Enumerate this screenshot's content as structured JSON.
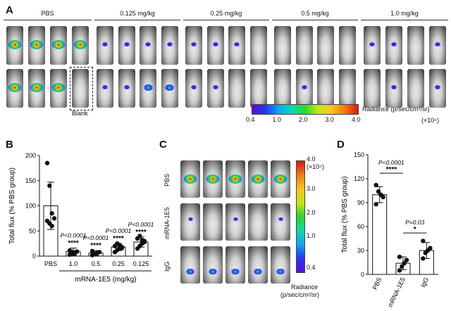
{
  "panel_a": {
    "letter": "A",
    "groups": [
      "PBS",
      "0.125 mg/kg",
      "0.25 mg/kg",
      "0.5 mg/kg",
      "1.0 mg/kg"
    ],
    "blank_label": "Blank",
    "colorbar": {
      "ticks": [
        "0.4",
        "1.0",
        "2.0",
        "3.0",
        "4.0"
      ],
      "label": "Radiance (p/sec/cm²/sr)",
      "unit": "(×10⁴)"
    }
  },
  "panel_c": {
    "letter": "C",
    "rows": [
      "PBS",
      "mRNA-1E5",
      "IgG"
    ],
    "colorbar": {
      "top": "4.0",
      "top_unit": "(×10⁴)",
      "ticks": [
        "3.0",
        "2.0",
        "1.0",
        "0.4"
      ],
      "label_line1": "Radiance",
      "label_line2": "(p/sec/cm²/sr)"
    }
  },
  "chart_data": [
    {
      "panel": "B",
      "type": "bar",
      "categories": [
        "PBS",
        "1.0",
        "0.5",
        "0.25",
        "0.125"
      ],
      "values": [
        100,
        9,
        6,
        18,
        28
      ],
      "errors": [
        47,
        7,
        5,
        7,
        10
      ],
      "points": [
        [
          185,
          140,
          85,
          75,
          70,
          65,
          60
        ],
        [
          3,
          5,
          7,
          9,
          11,
          8,
          5
        ],
        [
          2,
          4,
          6,
          8,
          10,
          5
        ],
        [
          8,
          12,
          15,
          18,
          20,
          25,
          22,
          16
        ],
        [
          15,
          20,
          25,
          30,
          35,
          40,
          32,
          28
        ]
      ],
      "ylabel": "Total flux (% PBS group)",
      "xlabel": "mRNA-1E5 (mg/kg)",
      "ylim": [
        0,
        200
      ],
      "yticks": [
        0,
        50,
        100,
        150,
        200
      ],
      "annotations": [
        {
          "category": "1.0",
          "p": "P<0.0001",
          "stars": "****"
        },
        {
          "category": "0.5",
          "p": "P<0.0001",
          "stars": "****"
        },
        {
          "category": "0.25",
          "p": "P<0.0001",
          "stars": "****"
        },
        {
          "category": "0.125",
          "p": "P<0.0001",
          "stars": "****"
        }
      ]
    },
    {
      "panel": "D",
      "type": "bar",
      "categories": [
        "PBS",
        "mRNA-1E5",
        "IgG"
      ],
      "values": [
        100,
        14,
        30
      ],
      "errors": [
        10,
        8,
        10
      ],
      "points": [
        [
          112,
          104,
          100,
          97,
          88
        ],
        [
          5,
          10,
          14,
          18,
          22
        ],
        [
          20,
          27,
          30,
          33,
          42
        ]
      ],
      "ylabel": "Total flux (% PBS group)",
      "ylim": [
        0,
        150
      ],
      "yticks": [
        0,
        30,
        60,
        90,
        120,
        150
      ],
      "comparisons": [
        {
          "from": "PBS",
          "to": "mRNA-1E5",
          "p": "P<0.0001",
          "stars": "****"
        },
        {
          "from": "mRNA-1E5",
          "to": "IgG",
          "p": "P=0.03",
          "stars": "*"
        }
      ]
    }
  ],
  "panel_b_letter": "B",
  "panel_d_letter": "D"
}
